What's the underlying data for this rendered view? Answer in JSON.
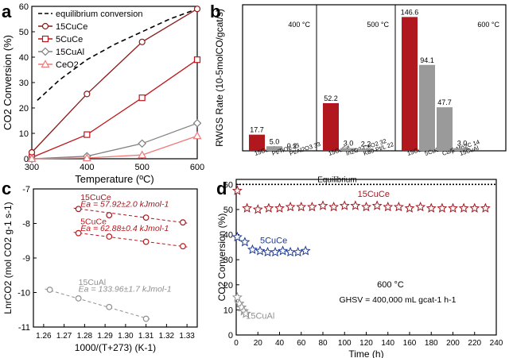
{
  "figure": {
    "panel_letters": [
      "a",
      "b",
      "c",
      "d"
    ]
  },
  "chart_data": [
    {
      "panel": "a",
      "type": "line",
      "xlabel": "Temperature (ºC)",
      "ylabel": "CO2 Conversion (%)",
      "xlim": [
        300,
        600
      ],
      "ylim": [
        0,
        60
      ],
      "xticks": [
        300,
        400,
        500,
        600
      ],
      "yticks": [
        0,
        10,
        20,
        30,
        40,
        50,
        60
      ],
      "legend_position": "top-left",
      "series": [
        {
          "name": "equilibrium conversion",
          "style": "dashed",
          "color": "#000000",
          "marker": "none",
          "x": [
            310,
            350,
            400,
            450,
            500,
            550,
            600
          ],
          "y": [
            23,
            31,
            39,
            45,
            50,
            55,
            59
          ]
        },
        {
          "name": "15CuCe",
          "color": "#8b1a1a",
          "marker": "circle",
          "x": [
            300,
            400,
            500,
            600
          ],
          "y": [
            2.5,
            25.5,
            46,
            59
          ]
        },
        {
          "name": "5CuCe",
          "color": "#c0151b",
          "marker": "square",
          "x": [
            300,
            400,
            500,
            600
          ],
          "y": [
            0.5,
            9.5,
            24,
            39
          ]
        },
        {
          "name": "15CuAl",
          "color": "#808080",
          "marker": "diamond",
          "x": [
            300,
            400,
            500,
            600
          ],
          "y": [
            0,
            1,
            6,
            14
          ]
        },
        {
          "name": "CeO2",
          "color": "#f07878",
          "marker": "triangle",
          "x": [
            300,
            400,
            500,
            600
          ],
          "y": [
            0,
            0.3,
            1.5,
            9
          ]
        }
      ]
    },
    {
      "panel": "b",
      "type": "bar",
      "ylabel": "RWGS Rate (10-5molCO/gcat/s)",
      "sections": [
        {
          "label": "400 °C",
          "bars": [
            {
              "category": "15CuCe",
              "value": 17.7,
              "label": "17.7",
              "color": "#b0171f"
            },
            {
              "category": "Pt/TiO2 33",
              "value": 5.0,
              "label": "5.0",
              "color": "#9a9a9a"
            },
            {
              "category": "Pt/Al2O3 33",
              "value": 0.2,
              "label": "0.2",
              "color": "#9a9a9a"
            }
          ]
        },
        {
          "label": "500 °C",
          "bars": [
            {
              "category": "15CuCe",
              "value": 52.2,
              "label": "52.2",
              "color": "#b0171f"
            },
            {
              "category": "In2O3-CeO2 32",
              "value": 3.0,
              "label": "3.0",
              "color": "#9a9a9a"
            },
            {
              "category": "K80-Pt/L 22",
              "value": 2.2,
              "label": "2.2",
              "color": "#9a9a9a"
            }
          ]
        },
        {
          "label": "600 °C",
          "bars": [
            {
              "category": "15CuCe",
              "value": 146.6,
              "label": "146.6",
              "color": "#b0171f"
            },
            {
              "category": "5CuCe",
              "value": 94.1,
              "label": "94.1",
              "color": "#9a9a9a"
            },
            {
              "category": "Cu/β-Mo2C 14",
              "value": 47.7,
              "label": "47.7",
              "color": "#9a9a9a"
            },
            {
              "category": "15CuAl",
              "value": 3.0,
              "label": "3.0",
              "color": "#9a9a9a"
            }
          ]
        }
      ],
      "ylim": [
        0,
        160
      ]
    },
    {
      "panel": "c",
      "type": "scatter",
      "xlabel": "1000/(T+273) (K-1)",
      "ylabel": "LnrCO2 (mol CO2 g-1 s-1)",
      "xlim": [
        1.255,
        1.335
      ],
      "ylim": [
        -11,
        -7
      ],
      "xticks": [
        1.26,
        1.27,
        1.28,
        1.29,
        1.3,
        1.31,
        1.32,
        1.33
      ],
      "yticks": [
        -11,
        -10,
        -9,
        -8,
        -7
      ],
      "series": [
        {
          "name": "15CuCe",
          "annotation": "Ea = 57.92±2.0 kJmol-1",
          "color": "#a0171f",
          "x": [
            1.277,
            1.292,
            1.31,
            1.328
          ],
          "y": [
            -7.58,
            -7.76,
            -7.83,
            -7.97
          ]
        },
        {
          "name": "5CuCe",
          "annotation": "Ea = 62.88±0.4 kJmol-1",
          "color": "#c0151b",
          "x": [
            1.277,
            1.292,
            1.31,
            1.328
          ],
          "y": [
            -8.28,
            -8.38,
            -8.53,
            -8.66
          ]
        },
        {
          "name": "15CuAl",
          "annotation": "Ea = 133.96±1.7 kJmol-1",
          "color": "#909090",
          "x": [
            1.263,
            1.277,
            1.292,
            1.31
          ],
          "y": [
            -9.92,
            -10.17,
            -10.42,
            -10.76
          ]
        }
      ]
    },
    {
      "panel": "d",
      "type": "scatter",
      "xlabel": "Time (h)",
      "ylabel": "CO2 Conversion (%)",
      "xlim": [
        0,
        240
      ],
      "ylim": [
        0,
        62
      ],
      "xticks": [
        0,
        20,
        40,
        60,
        80,
        100,
        120,
        140,
        160,
        180,
        200,
        220,
        240
      ],
      "yticks": [
        0,
        10,
        20,
        30,
        40,
        50,
        60
      ],
      "annotations": {
        "equilibrium": "Equilibrium",
        "equilibrium_value": 60,
        "temperature": "600 °C",
        "ghsv": "GHSV = 400,000 mL gcat-1 h-1"
      },
      "series": [
        {
          "name": "15CuCe",
          "color": "#a0171f",
          "marker": "star",
          "x": [
            1,
            10,
            20,
            30,
            40,
            50,
            60,
            70,
            80,
            90,
            100,
            110,
            120,
            130,
            140,
            150,
            160,
            170,
            180,
            190,
            200,
            210,
            220,
            230
          ],
          "y": [
            57.5,
            50.5,
            50,
            50.5,
            50.5,
            51,
            51,
            51,
            51.5,
            51,
            51.5,
            51.5,
            51,
            51.5,
            51,
            51,
            50.5,
            51,
            50.5,
            50.5,
            50.5,
            50.5,
            50.5,
            50.5
          ]
        },
        {
          "name": "5CuCe",
          "color": "#1f3a93",
          "marker": "star",
          "x": [
            1,
            8,
            15,
            22,
            29,
            36,
            43,
            50,
            57,
            64
          ],
          "y": [
            39,
            37,
            34,
            33.5,
            33,
            33,
            33.5,
            33,
            33,
            33.5
          ]
        },
        {
          "name": "15CuAl",
          "color": "#909090",
          "marker": "star",
          "x": [
            1,
            3,
            5,
            7,
            9
          ],
          "y": [
            15,
            12.5,
            11,
            9.5,
            8.5
          ]
        }
      ]
    }
  ]
}
